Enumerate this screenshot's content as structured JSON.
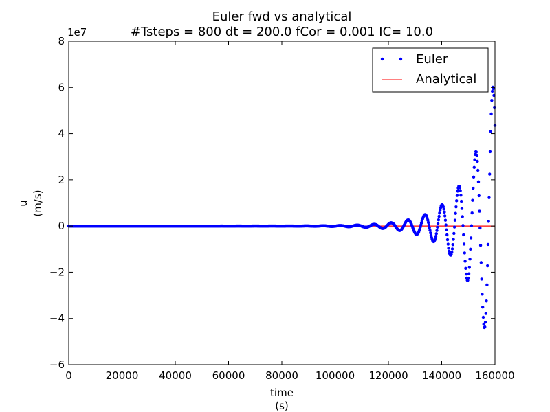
{
  "chart_data": {
    "type": "line",
    "title_line1": "Euler fwd vs  analytical",
    "title_line2": "#Tsteps = 800 dt = 200.0 fCor = 0.001 IC= 10.0",
    "xlabel_line1": "time",
    "xlabel_line2": "(s)",
    "ylabel_line1": "u",
    "ylabel_line2": "(m/s)",
    "y_scale_label": "1e7",
    "y_scale_factor": 10000000,
    "xlim": [
      0,
      160000
    ],
    "ylim": [
      -6,
      8
    ],
    "x_ticks": [
      0,
      20000,
      40000,
      60000,
      80000,
      100000,
      120000,
      140000,
      160000
    ],
    "x_tick_labels": [
      "0",
      "20000",
      "40000",
      "60000",
      "80000",
      "100000",
      "120000",
      "140000",
      "160000"
    ],
    "y_ticks": [
      -6,
      -4,
      -2,
      0,
      2,
      4,
      6,
      8
    ],
    "y_tick_labels": [
      "−6",
      "−4",
      "−2",
      "0",
      "2",
      "4",
      "6",
      "8"
    ],
    "grid": false,
    "legend_position": "top-right",
    "series": [
      {
        "name": "Euler",
        "style": "dots",
        "color": "#0000ff",
        "dt": 200,
        "n_steps": 800,
        "initial_value": 10.0,
        "coriolis_f": 0.001,
        "description_of_values": "u_n = 10 * (1 + (f*dt)^2)^(n/2) * cos(n * atan(f*dt)), n = 0..800"
      },
      {
        "name": "Analytical",
        "style": "line",
        "color": "#ff0000",
        "initial_value": 10.0,
        "coriolis_f": 0.001
      }
    ]
  }
}
